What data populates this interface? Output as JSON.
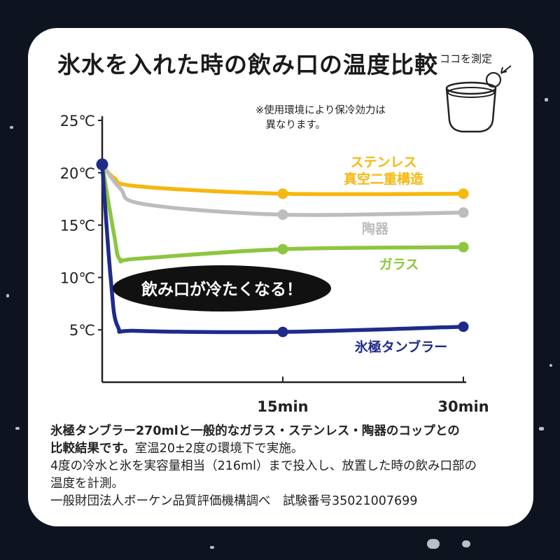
{
  "title": "氷水を入れた時の飲み口の温度比較",
  "measure_label": "ココを測定",
  "note": "※使用環境により保冷効力は\n　異なります。",
  "callout": "飲み口が冷たくなる！",
  "description": {
    "line1_bold": "氷極タンブラー270mlと一般的なガラス・ステンレス・陶器のコップとの",
    "line2_bold": "比較結果です。",
    "line2_rest": "室温20±2度の環境下で実施。",
    "line3": "4度の冷水と氷を実容量相当（216ml）まで投入し、放置した時の飲み口部の",
    "line4": "温度を計測。",
    "line5": "一般財団法人ボーケン品質評価機構調べ　試験番号35021007699"
  },
  "colors": {
    "stainless": "#f5b80f",
    "ceramic": "#bdbdbd",
    "glass": "#8cc63f",
    "hyogoku": "#1f2b8a"
  },
  "chart_data": {
    "type": "line",
    "ylim": [
      0,
      25
    ],
    "yticks": [
      "5℃",
      "10℃",
      "15℃",
      "20℃",
      "25℃"
    ],
    "ytick_values": [
      5,
      10,
      15,
      20,
      25
    ],
    "xticks": [
      "15min",
      "30min"
    ],
    "xtick_values": [
      15,
      30
    ],
    "xlim": [
      0,
      30
    ],
    "series": [
      {
        "name": "ステンレス\n真空二重構造",
        "color_key": "stainless",
        "x": [
          0,
          1,
          3,
          15,
          30
        ],
        "y": [
          20.8,
          19.5,
          18.7,
          18.0,
          18.0
        ],
        "markers_at": [
          15,
          30
        ]
      },
      {
        "name": "陶器",
        "color_key": "ceramic",
        "x": [
          0,
          1.5,
          3.5,
          15,
          30
        ],
        "y": [
          20.8,
          18.5,
          17.0,
          16.0,
          16.2
        ],
        "markers_at": [
          15,
          30
        ]
      },
      {
        "name": "ガラス",
        "color_key": "glass",
        "x": [
          0,
          1,
          1.5,
          3,
          15,
          30
        ],
        "y": [
          20.8,
          14.0,
          11.7,
          11.8,
          12.7,
          12.9
        ],
        "markers_at": [
          15,
          30
        ]
      },
      {
        "name": "氷極タンブラー",
        "color_key": "hyogoku",
        "x": [
          0,
          0.7,
          1.3,
          3,
          15,
          30
        ],
        "y": [
          20.8,
          10.0,
          5.3,
          4.9,
          4.8,
          5.3
        ],
        "markers_at": [
          0,
          15,
          30
        ]
      }
    ]
  }
}
